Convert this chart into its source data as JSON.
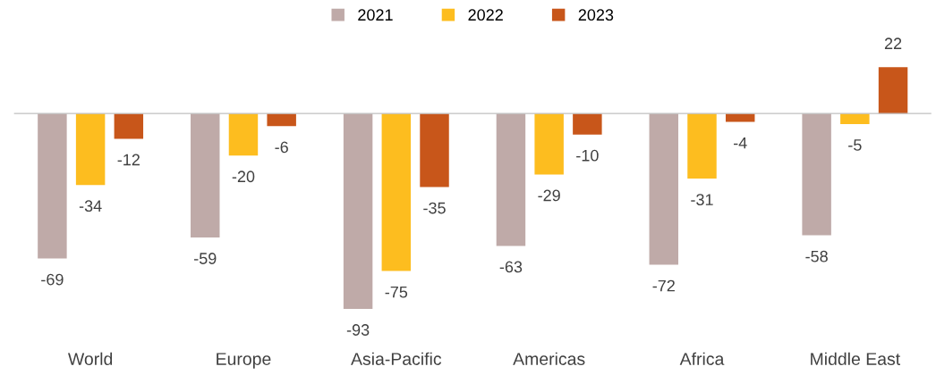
{
  "chart_data": {
    "type": "bar",
    "categories": [
      "World",
      "Europe",
      "Asia-Pacific",
      "Americas",
      "Africa",
      "Middle East"
    ],
    "series": [
      {
        "name": "2021",
        "color": "#bfaaa8",
        "values": [
          -69,
          -59,
          -93,
          -63,
          -72,
          -58
        ]
      },
      {
        "name": "2022",
        "color": "#fdbd1f",
        "values": [
          -34,
          -20,
          -75,
          -29,
          -31,
          -5
        ]
      },
      {
        "name": "2023",
        "color": "#c8561a",
        "values": [
          -12,
          -6,
          -35,
          -10,
          -4,
          22
        ]
      }
    ],
    "data_labels": true,
    "legend": "top",
    "grid": false
  }
}
